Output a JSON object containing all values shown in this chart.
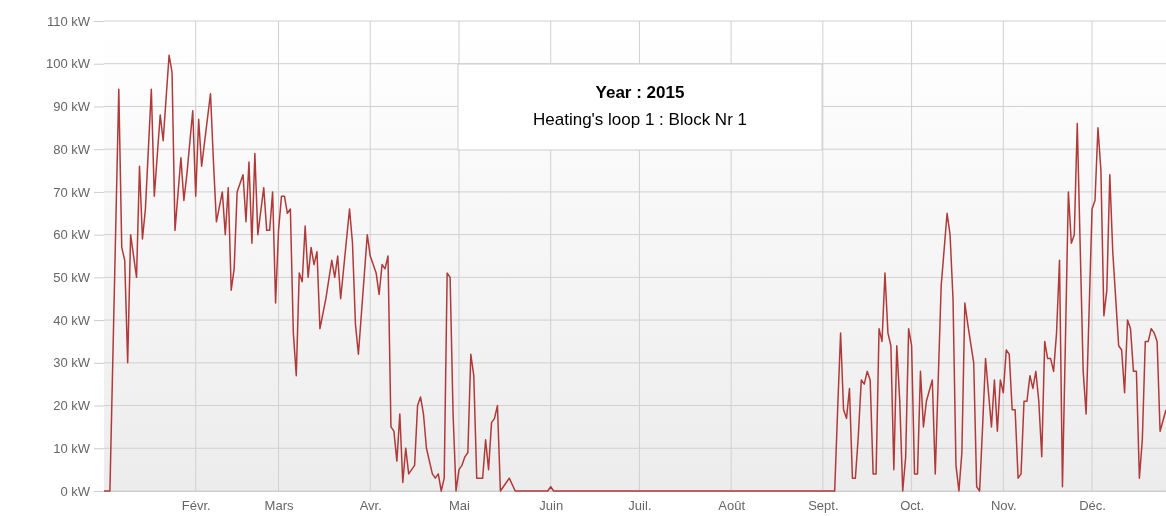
{
  "chart_data": {
    "type": "line",
    "title": "Year : 2015",
    "subtitle": "Heating's loop 1 : Block Nr 1",
    "xlim": [
      "2015-01-01",
      "2015-12-26"
    ],
    "xticks": [
      {
        "value": "2015-02-01",
        "label": "Févr."
      },
      {
        "value": "2015-03-01",
        "label": "Mars"
      },
      {
        "value": "2015-04-01",
        "label": "Avr."
      },
      {
        "value": "2015-05-01",
        "label": "Mai"
      },
      {
        "value": "2015-06-01",
        "label": "Juin"
      },
      {
        "value": "2015-07-01",
        "label": "Juil."
      },
      {
        "value": "2015-08-01",
        "label": "Août"
      },
      {
        "value": "2015-09-01",
        "label": "Sept."
      },
      {
        "value": "2015-10-01",
        "label": "Oct."
      },
      {
        "value": "2015-11-01",
        "label": "Nov."
      },
      {
        "value": "2015-12-01",
        "label": "Déc."
      }
    ],
    "ylim": [
      0,
      110
    ],
    "yticks": [
      {
        "value": 0,
        "label": "0 kW"
      },
      {
        "value": 10,
        "label": "10 kW"
      },
      {
        "value": 20,
        "label": "20 kW"
      },
      {
        "value": 30,
        "label": "30 kW"
      },
      {
        "value": 40,
        "label": "40 kW"
      },
      {
        "value": 50,
        "label": "50 kW"
      },
      {
        "value": 60,
        "label": "60 kW"
      },
      {
        "value": 70,
        "label": "70 kW"
      },
      {
        "value": 80,
        "label": "80 kW"
      },
      {
        "value": 90,
        "label": "90 kW"
      },
      {
        "value": 100,
        "label": "100 kW"
      },
      {
        "value": 110,
        "label": "110 kW"
      }
    ],
    "grid": true,
    "marker": "none",
    "line_style": "solid",
    "x": [
      "2015-01-01",
      "2015-01-03",
      "2015-01-06",
      "2015-01-07",
      "2015-01-08",
      "2015-01-09",
      "2015-01-10",
      "2015-01-12",
      "2015-01-13",
      "2015-01-14",
      "2015-01-15",
      "2015-01-17",
      "2015-01-18",
      "2015-01-20",
      "2015-01-21",
      "2015-01-23",
      "2015-01-24",
      "2015-01-25",
      "2015-01-27",
      "2015-01-28",
      "2015-01-29",
      "2015-01-31",
      "2015-02-01",
      "2015-02-02",
      "2015-02-03",
      "2015-02-06",
      "2015-02-07",
      "2015-02-08",
      "2015-02-10",
      "2015-02-11",
      "2015-02-12",
      "2015-02-13",
      "2015-02-14",
      "2015-02-15",
      "2015-02-17",
      "2015-02-18",
      "2015-02-19",
      "2015-02-20",
      "2015-02-21",
      "2015-02-22",
      "2015-02-24",
      "2015-02-25",
      "2015-02-26",
      "2015-02-27",
      "2015-02-28",
      "2015-03-01",
      "2015-03-02",
      "2015-03-03",
      "2015-03-04",
      "2015-03-05",
      "2015-03-06",
      "2015-03-07",
      "2015-03-08",
      "2015-03-09",
      "2015-03-10",
      "2015-03-11",
      "2015-03-12",
      "2015-03-13",
      "2015-03-14",
      "2015-03-15",
      "2015-03-17",
      "2015-03-19",
      "2015-03-20",
      "2015-03-21",
      "2015-03-22",
      "2015-03-25",
      "2015-03-26",
      "2015-03-27",
      "2015-03-28",
      "2015-03-31",
      "2015-04-01",
      "2015-04-03",
      "2015-04-04",
      "2015-04-05",
      "2015-04-06",
      "2015-04-07",
      "2015-04-08",
      "2015-04-09",
      "2015-04-10",
      "2015-04-11",
      "2015-04-12",
      "2015-04-13",
      "2015-04-14",
      "2015-04-15",
      "2015-04-16",
      "2015-04-17",
      "2015-04-18",
      "2015-04-19",
      "2015-04-20",
      "2015-04-22",
      "2015-04-23",
      "2015-04-24",
      "2015-04-25",
      "2015-04-26",
      "2015-04-27",
      "2015-04-28",
      "2015-04-29",
      "2015-04-30",
      "2015-05-01",
      "2015-05-02",
      "2015-05-03",
      "2015-05-04",
      "2015-05-05",
      "2015-05-06",
      "2015-05-07",
      "2015-05-09",
      "2015-05-10",
      "2015-05-11",
      "2015-05-12",
      "2015-05-13",
      "2015-05-14",
      "2015-05-15",
      "2015-05-17",
      "2015-05-18",
      "2015-05-20",
      "2015-05-31",
      "2015-06-01",
      "2015-06-02",
      "2015-09-05",
      "2015-09-06",
      "2015-09-07",
      "2015-09-08",
      "2015-09-09",
      "2015-09-10",
      "2015-09-11",
      "2015-09-12",
      "2015-09-13",
      "2015-09-14",
      "2015-09-15",
      "2015-09-16",
      "2015-09-17",
      "2015-09-18",
      "2015-09-19",
      "2015-09-20",
      "2015-09-21",
      "2015-09-22",
      "2015-09-23",
      "2015-09-24",
      "2015-09-25",
      "2015-09-26",
      "2015-09-27",
      "2015-09-28",
      "2015-09-29",
      "2015-09-30",
      "2015-10-01",
      "2015-10-02",
      "2015-10-03",
      "2015-10-04",
      "2015-10-05",
      "2015-10-06",
      "2015-10-08",
      "2015-10-09",
      "2015-10-11",
      "2015-10-13",
      "2015-10-14",
      "2015-10-15",
      "2015-10-16",
      "2015-10-17",
      "2015-10-18",
      "2015-10-19",
      "2015-10-20",
      "2015-10-22",
      "2015-10-23",
      "2015-10-24",
      "2015-10-25",
      "2015-10-26",
      "2015-10-28",
      "2015-10-29",
      "2015-10-30",
      "2015-10-31",
      "2015-11-01",
      "2015-11-02",
      "2015-11-03",
      "2015-11-04",
      "2015-11-05",
      "2015-11-06",
      "2015-11-07",
      "2015-11-08",
      "2015-11-09",
      "2015-11-10",
      "2015-11-11",
      "2015-11-12",
      "2015-11-13",
      "2015-11-14",
      "2015-11-15",
      "2015-11-16",
      "2015-11-17",
      "2015-11-18",
      "2015-11-19",
      "2015-11-20",
      "2015-11-21",
      "2015-11-22",
      "2015-11-23",
      "2015-11-24",
      "2015-11-25",
      "2015-11-26",
      "2015-11-28",
      "2015-11-29",
      "2015-12-01",
      "2015-12-02",
      "2015-12-03",
      "2015-12-04",
      "2015-12-05",
      "2015-12-06",
      "2015-12-07",
      "2015-12-08",
      "2015-12-10",
      "2015-12-11",
      "2015-12-12",
      "2015-12-13",
      "2015-12-14",
      "2015-12-15",
      "2015-12-16",
      "2015-12-17",
      "2015-12-18",
      "2015-12-19",
      "2015-12-20",
      "2015-12-21",
      "2015-12-22",
      "2015-12-23",
      "2015-12-24",
      "2015-12-26"
    ],
    "series": [
      {
        "color": "#b03a3a",
        "values": [
          0,
          0,
          94,
          57,
          54,
          30,
          60,
          50,
          76,
          59,
          66,
          94,
          69,
          88,
          82,
          102,
          98,
          61,
          78,
          68,
          74,
          89,
          69,
          87,
          76,
          93,
          77,
          63,
          70,
          60,
          71,
          47,
          52,
          70,
          74,
          63,
          77,
          58,
          79,
          60,
          71,
          61,
          61,
          70,
          44,
          61,
          69,
          69,
          65,
          66,
          37,
          27,
          51,
          49,
          62,
          50,
          57,
          53,
          56,
          38,
          45,
          54,
          50,
          55,
          45,
          66,
          58,
          39,
          32,
          60,
          55,
          51,
          46,
          53,
          52,
          55,
          15,
          14,
          7,
          18,
          2,
          10,
          4,
          5,
          6,
          20,
          22,
          18,
          10,
          4,
          3,
          4,
          0,
          3,
          51,
          50,
          18,
          0,
          5,
          6,
          8,
          9,
          32,
          27,
          3,
          3,
          12,
          5,
          16,
          17,
          20,
          0,
          2,
          3,
          0,
          0,
          1,
          0,
          0,
          19,
          37,
          19,
          17,
          24,
          3,
          3,
          13,
          26,
          25,
          28,
          26,
          4,
          4,
          38,
          35,
          51,
          37,
          34,
          5,
          34,
          21,
          0,
          8,
          38,
          34,
          4,
          4,
          28,
          15,
          21,
          26,
          4,
          48,
          65,
          60,
          45,
          6,
          0,
          9,
          44,
          39,
          30,
          1,
          0,
          15,
          31,
          15,
          26,
          14,
          26,
          23,
          33,
          32,
          19,
          19,
          3,
          4,
          21,
          21,
          27,
          24,
          28,
          21,
          8,
          35,
          31,
          31,
          28,
          37,
          54,
          1,
          35,
          70,
          58,
          60,
          86,
          28,
          18,
          66,
          68,
          85,
          75,
          41,
          47,
          74,
          56,
          34,
          33,
          23,
          40,
          38,
          28,
          28,
          3,
          12,
          35,
          35,
          38,
          37,
          35,
          14,
          19
        ]
      }
    ]
  }
}
